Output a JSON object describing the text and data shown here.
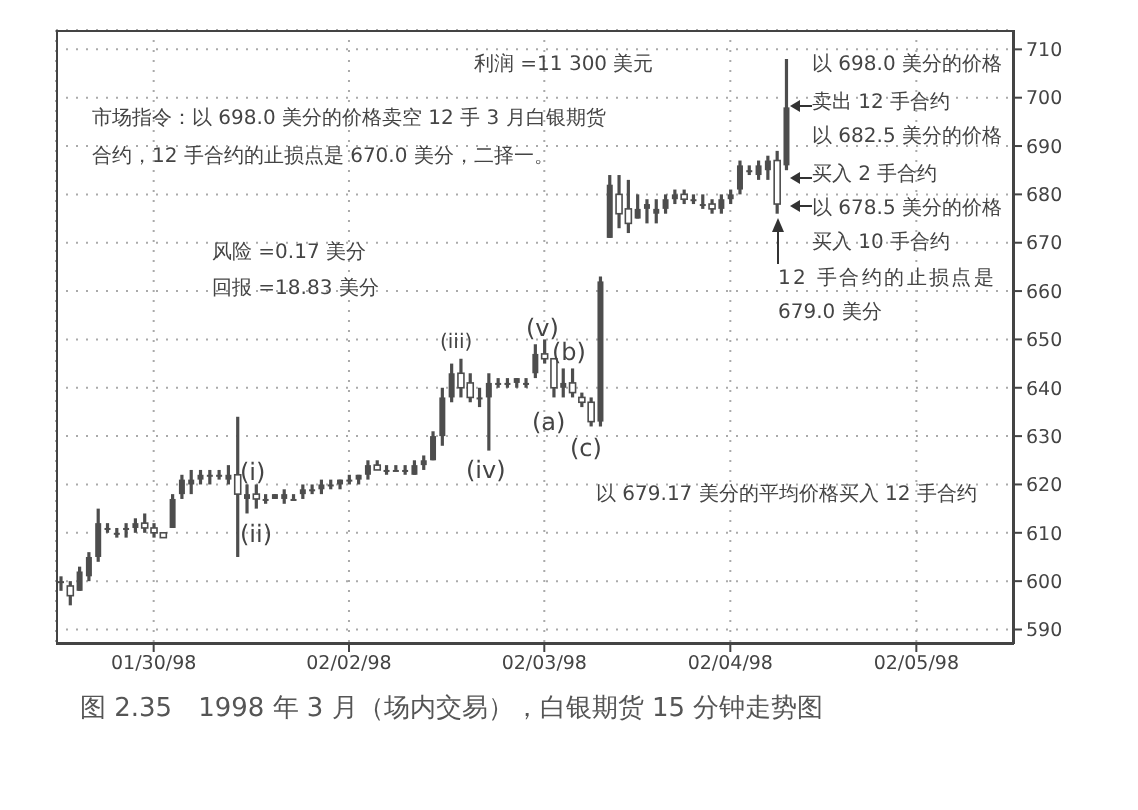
{
  "chart_data": {
    "type": "candlestick",
    "title": "图 2.35　1998 年 3 月（场内交易），白银期货 15 分钟走势图",
    "categories": [
      null,
      null,
      null,
      null,
      null,
      null,
      null,
      null,
      null,
      null,
      "01/30/98",
      null,
      null,
      null,
      null,
      null,
      null,
      null,
      null,
      null,
      null,
      null,
      null,
      null,
      null,
      null,
      null,
      null,
      null,
      null,
      null,
      "02/02/98",
      null,
      null,
      null,
      null,
      null,
      null,
      null,
      null,
      null,
      null,
      null,
      null,
      null,
      null,
      null,
      null,
      null,
      null,
      null,
      null,
      "02/03/98",
      null,
      null,
      null,
      null,
      null,
      null,
      null,
      null,
      null,
      null,
      null,
      null,
      null,
      null,
      null,
      null,
      null,
      null,
      null,
      "02/04/98",
      null,
      null,
      null,
      null,
      null,
      null,
      null,
      null,
      null,
      null,
      null,
      null,
      null,
      null,
      null,
      null,
      null,
      null,
      null,
      "02/05/98",
      null,
      null,
      null,
      null,
      null,
      null,
      null,
      null,
      null,
      null
    ],
    "series": [
      {
        "color": "#4d4d4d",
        "ohlc": [
          [
            600,
            601,
            598,
            600
          ],
          [
            599,
            600,
            595,
            597
          ],
          [
            598,
            603,
            598,
            602
          ],
          [
            601,
            606,
            600,
            605
          ],
          [
            605,
            615,
            604,
            612
          ],
          [
            611,
            612,
            610,
            611
          ],
          [
            610,
            611,
            609,
            610
          ],
          [
            611,
            612,
            609,
            611
          ],
          [
            611,
            613,
            610,
            612
          ],
          [
            612,
            614,
            610,
            611
          ],
          [
            611,
            612,
            609,
            610
          ],
          [
            610,
            610,
            609,
            609
          ],
          [
            611,
            618,
            611,
            617
          ],
          [
            618,
            622,
            617,
            621
          ],
          [
            620,
            623,
            618,
            621
          ],
          [
            621,
            623,
            620,
            622
          ],
          [
            622,
            623,
            620,
            622
          ],
          [
            622,
            623,
            621,
            622
          ],
          [
            621,
            624,
            620,
            622
          ],
          [
            622,
            634,
            605,
            618
          ],
          [
            617,
            620,
            614,
            618
          ],
          [
            618,
            620,
            615,
            617
          ],
          [
            617,
            618,
            616,
            617
          ],
          [
            617,
            618,
            617,
            618
          ],
          [
            617,
            619,
            616,
            618
          ],
          [
            617,
            618,
            617,
            617
          ],
          [
            618,
            620,
            617,
            619
          ],
          [
            619,
            620,
            618,
            619
          ],
          [
            619,
            621,
            618,
            620
          ],
          [
            620,
            621,
            619,
            620
          ],
          [
            620,
            621,
            619,
            621
          ],
          [
            621,
            622,
            620,
            621
          ],
          [
            621,
            622,
            620,
            622
          ],
          [
            622,
            625,
            621,
            624
          ],
          [
            624,
            625,
            623,
            623
          ],
          [
            623,
            624,
            622,
            623
          ],
          [
            623,
            624,
            623,
            623
          ],
          [
            623,
            624,
            622,
            623
          ],
          [
            622,
            625,
            622,
            624
          ],
          [
            624,
            626,
            623,
            625
          ],
          [
            625,
            631,
            625,
            630
          ],
          [
            630,
            640,
            628,
            638
          ],
          [
            638,
            645,
            637,
            643
          ],
          [
            643,
            646,
            638,
            640
          ],
          [
            641,
            643,
            637,
            638
          ],
          [
            638,
            640,
            636,
            638
          ],
          [
            638,
            643,
            627,
            641
          ],
          [
            641,
            642,
            640,
            641
          ],
          [
            641,
            642,
            640,
            641
          ],
          [
            641,
            642,
            640,
            642
          ],
          [
            641,
            642,
            640,
            641
          ],
          [
            643,
            649,
            642,
            647
          ],
          [
            647,
            650,
            645,
            646
          ],
          [
            646,
            646,
            638,
            640
          ],
          [
            640,
            644,
            638,
            641
          ],
          [
            641,
            644,
            638,
            639
          ],
          [
            638,
            639,
            636,
            637
          ],
          [
            637,
            638,
            632,
            633
          ],
          [
            633,
            663,
            632,
            662
          ],
          [
            671,
            684,
            671,
            682
          ],
          [
            680,
            684,
            673,
            676
          ],
          [
            677,
            683,
            672,
            674
          ],
          [
            675,
            680,
            675,
            677
          ],
          [
            677,
            679,
            674,
            678
          ],
          [
            676,
            679,
            674,
            677
          ],
          [
            677,
            680,
            676,
            679
          ],
          [
            679,
            681,
            678,
            680
          ],
          [
            680,
            681,
            678,
            679
          ],
          [
            679,
            680,
            678,
            679
          ],
          [
            678,
            680,
            677,
            678
          ],
          [
            678,
            679,
            676,
            677
          ],
          [
            677,
            680,
            676,
            679
          ],
          [
            679,
            681,
            678,
            680
          ],
          [
            681,
            687,
            680,
            686
          ],
          [
            685,
            686,
            684,
            685
          ],
          [
            684,
            687,
            683,
            686
          ],
          [
            685,
            688,
            683,
            687
          ],
          [
            687,
            689,
            676,
            678
          ],
          [
            686,
            708,
            685,
            698
          ],
          null,
          null,
          null,
          null,
          null,
          null,
          null,
          null,
          null,
          null,
          null,
          null,
          null,
          null,
          null,
          null,
          null,
          null,
          null,
          null,
          null,
          null,
          null,
          null
        ]
      }
    ],
    "ylim": [
      587,
      714
    ],
    "yticks": [
      590,
      600,
      610,
      620,
      630,
      640,
      650,
      660,
      670,
      680,
      690,
      700,
      710
    ],
    "grid": true,
    "annotations": [
      "利润 =11 300 美元",
      "市场指令：以 698.0 美分的价格卖空 12 手 3 月白银期货合约，12 手合约的止损点是 670.0 美分，二择一。",
      "风险 =0.17 美分",
      "回报 =18.83 美分",
      "(i)",
      "(ii)",
      "(iii)",
      "(iv)",
      "(v)",
      "(a)",
      "(b)",
      "(c)",
      "以 679.17 美分的平均价格买入 12 手合约",
      "以 698.0 美分的价格",
      "卖出 12 手合约",
      "以 682.5 美分的价格",
      "买入 2 手合约",
      "以 678.5 美分的价格",
      "买入 10 手合约",
      "12 手合约的止损点是",
      "679.0 美分"
    ]
  }
}
